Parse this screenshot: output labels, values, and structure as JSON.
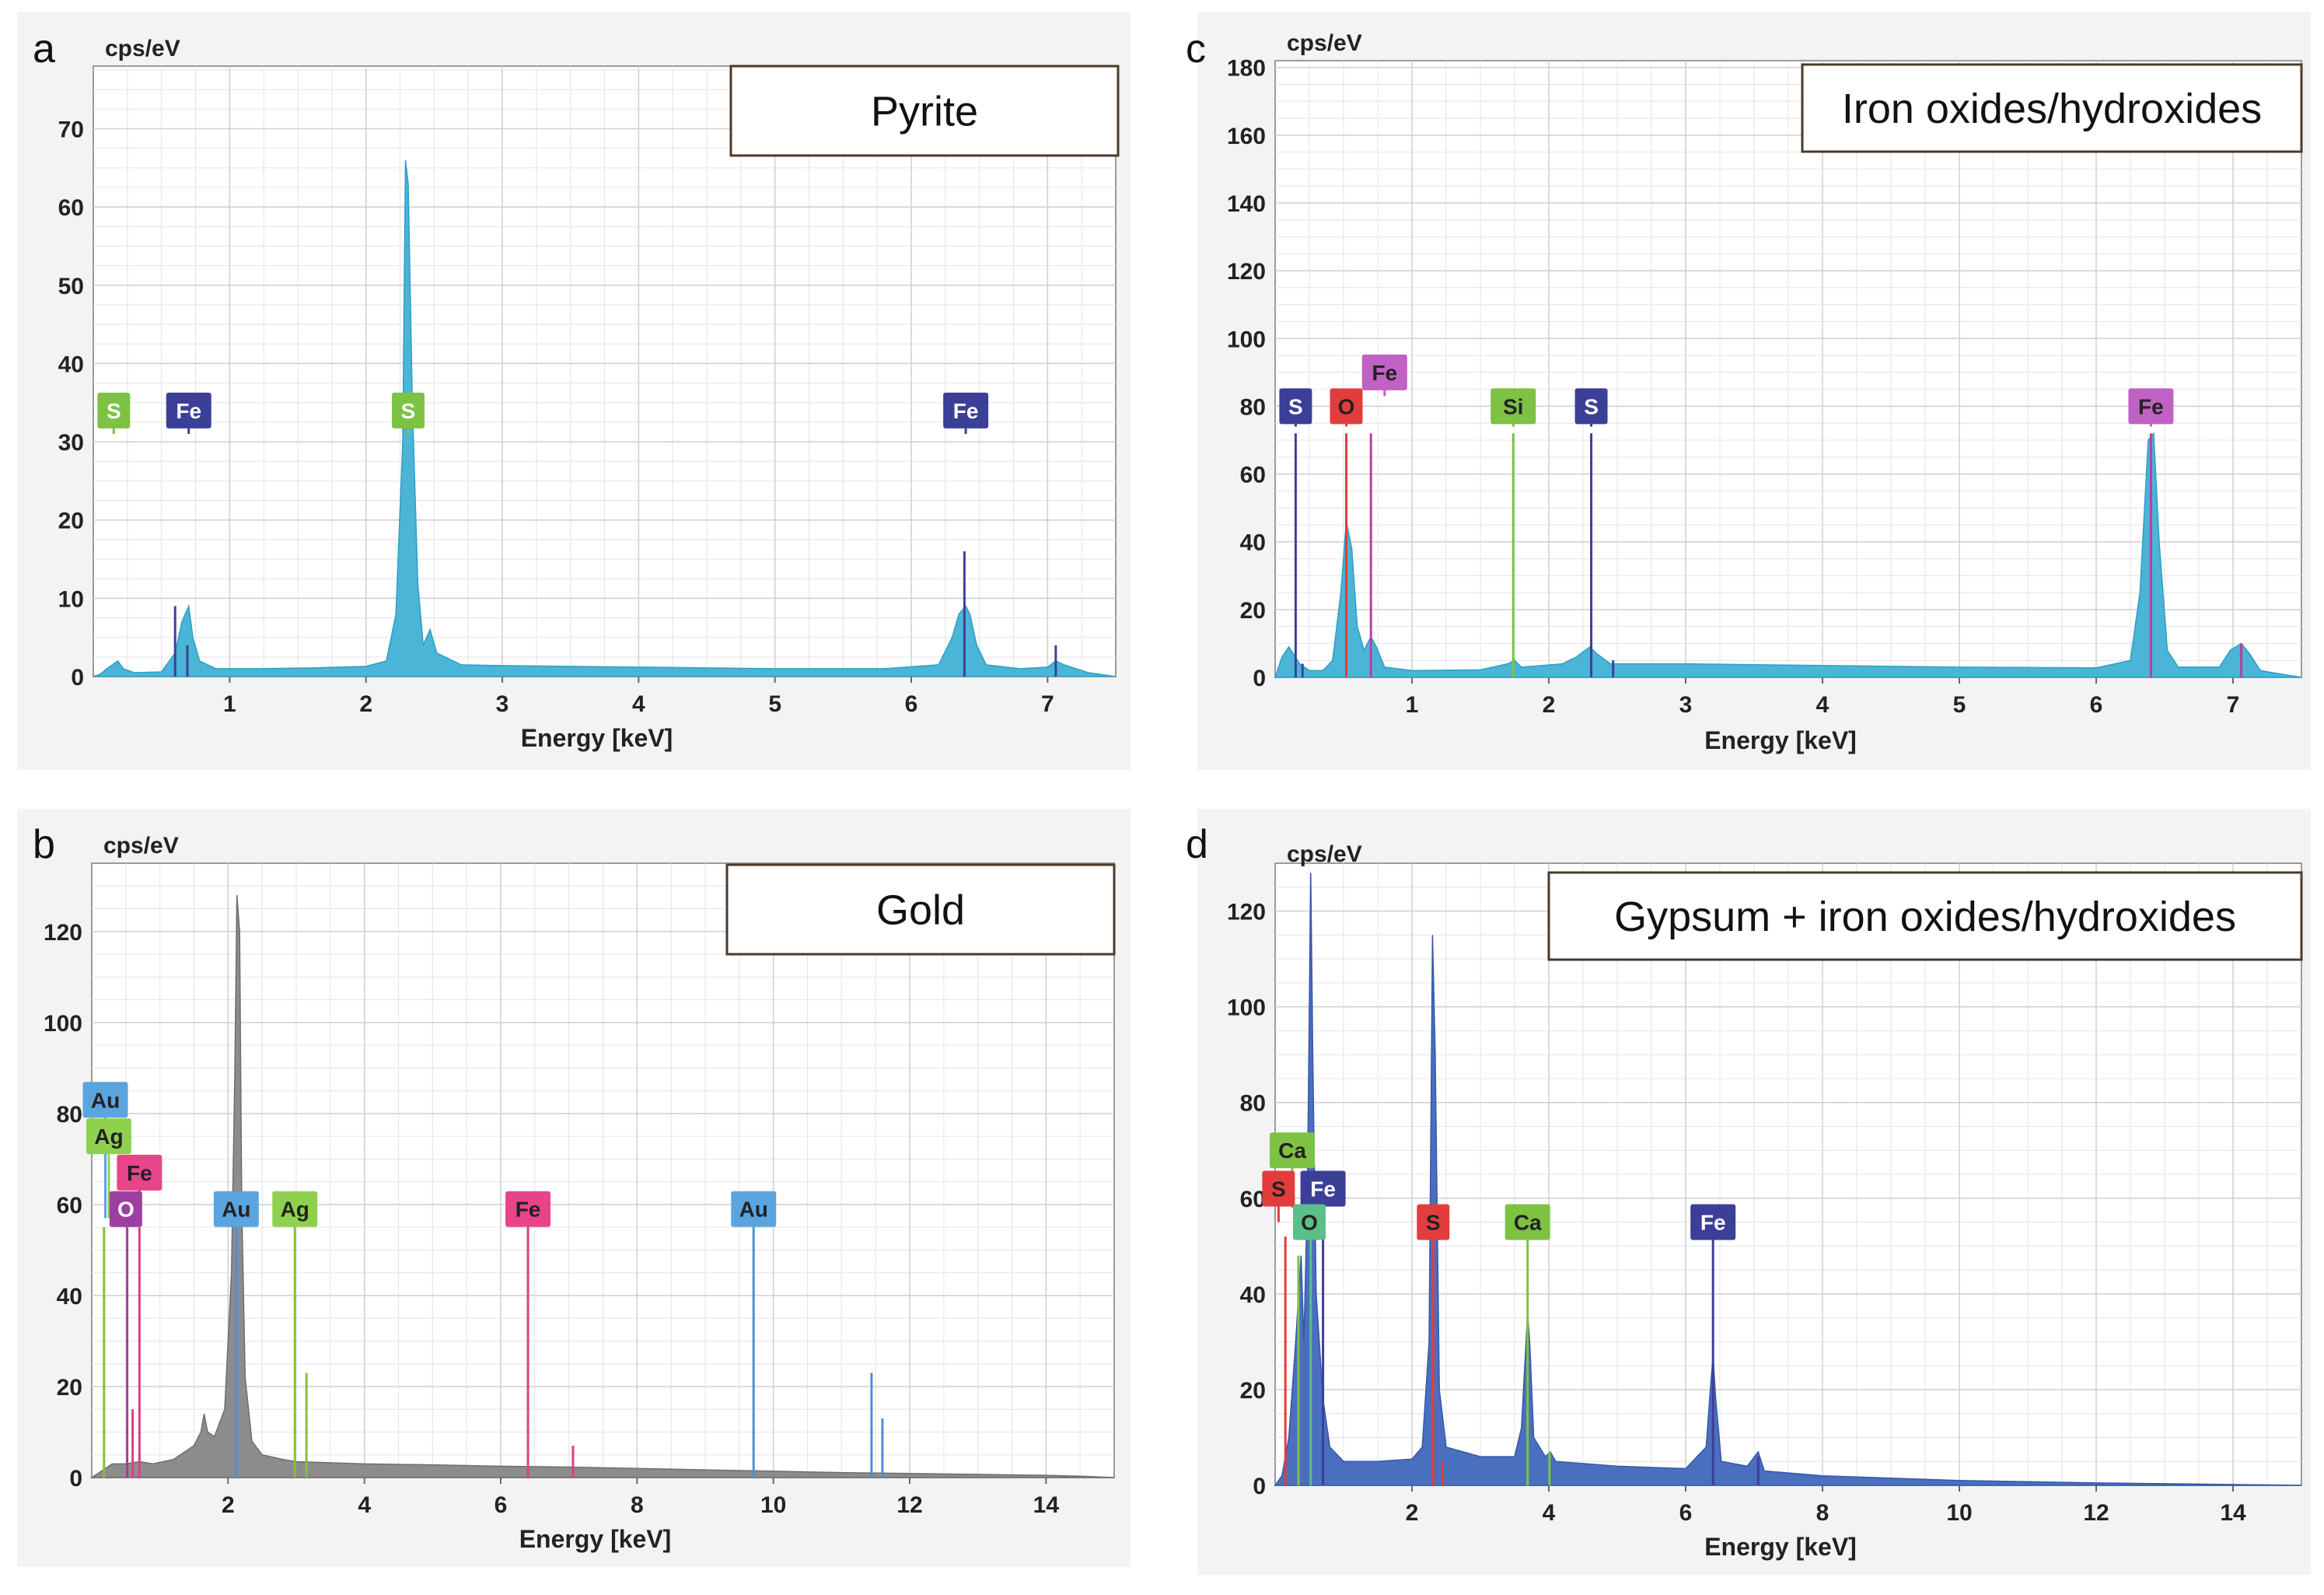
{
  "figure": {
    "letters": [
      "a",
      "b",
      "c",
      "d"
    ]
  },
  "chart_data": [
    {
      "panel": "a",
      "type": "line",
      "title": "Pyrite",
      "ylabel": "cps/eV",
      "xlabel": "Energy [keV]",
      "xlim": [
        0,
        7.5
      ],
      "ylim": [
        0,
        78
      ],
      "xticks": [
        1,
        2,
        3,
        4,
        5,
        6,
        7
      ],
      "yticks": [
        0,
        10,
        20,
        30,
        40,
        50,
        60,
        70
      ],
      "fill_color": "#4ab5d6",
      "stroke_color": "#2f9ec4",
      "spectrum": [
        [
          0,
          0
        ],
        [
          0.05,
          0.3
        ],
        [
          0.1,
          1
        ],
        [
          0.18,
          2
        ],
        [
          0.22,
          1
        ],
        [
          0.3,
          0.5
        ],
        [
          0.5,
          0.6
        ],
        [
          0.6,
          3
        ],
        [
          0.65,
          7
        ],
        [
          0.7,
          9
        ],
        [
          0.73,
          5
        ],
        [
          0.78,
          2
        ],
        [
          0.9,
          1
        ],
        [
          1.2,
          1
        ],
        [
          1.6,
          1.1
        ],
        [
          2,
          1.3
        ],
        [
          2.15,
          2
        ],
        [
          2.22,
          8
        ],
        [
          2.27,
          30
        ],
        [
          2.29,
          66
        ],
        [
          2.31,
          63
        ],
        [
          2.34,
          35
        ],
        [
          2.38,
          12
        ],
        [
          2.42,
          4
        ],
        [
          2.47,
          6
        ],
        [
          2.52,
          3
        ],
        [
          2.7,
          1.5
        ],
        [
          3,
          1.4
        ],
        [
          4,
          1.2
        ],
        [
          5,
          1
        ],
        [
          5.8,
          1
        ],
        [
          6.2,
          1.5
        ],
        [
          6.3,
          5
        ],
        [
          6.35,
          8
        ],
        [
          6.4,
          9
        ],
        [
          6.43,
          8
        ],
        [
          6.48,
          4
        ],
        [
          6.55,
          1.5
        ],
        [
          6.8,
          1
        ],
        [
          7,
          1.2
        ],
        [
          7.06,
          2
        ],
        [
          7.12,
          1.5
        ],
        [
          7.3,
          0.5
        ],
        [
          7.5,
          0
        ]
      ],
      "lines": [
        {
          "x": 0.6,
          "h": 9,
          "color": "#3f3f9a"
        },
        {
          "x": 0.69,
          "h": 4,
          "color": "#3f3f9a"
        },
        {
          "x": 6.39,
          "h": 16,
          "color": "#3f3f9a"
        },
        {
          "x": 7.06,
          "h": 4,
          "color": "#3f3f9a"
        }
      ],
      "labels": [
        {
          "text": "S",
          "x": 0.15,
          "y": 34,
          "top": 31,
          "bg": "#7dc242",
          "fg": "#ffffff"
        },
        {
          "text": "Fe",
          "x": 0.7,
          "y": 34,
          "top": 31,
          "bg": "#3c3f97",
          "fg": "#ffffff"
        },
        {
          "text": "S",
          "x": 2.31,
          "y": 34,
          "top": 31,
          "bg": "#7dc242",
          "fg": "#ffffff"
        },
        {
          "text": "Fe",
          "x": 6.4,
          "y": 34,
          "top": 31,
          "bg": "#3c3f97",
          "fg": "#ffffff"
        }
      ]
    },
    {
      "panel": "b",
      "type": "line",
      "title": "Gold",
      "ylabel": "cps/eV",
      "xlabel": "Energy [keV]",
      "xlim": [
        0,
        15
      ],
      "ylim": [
        0,
        135
      ],
      "xticks": [
        2,
        4,
        6,
        8,
        10,
        12,
        14
      ],
      "yticks": [
        0,
        20,
        40,
        60,
        80,
        100,
        120
      ],
      "fill_color": "#8c8c8c",
      "stroke_color": "#6e6e6e",
      "spectrum": [
        [
          0,
          0
        ],
        [
          0.1,
          1
        ],
        [
          0.2,
          2
        ],
        [
          0.3,
          3
        ],
        [
          0.5,
          3
        ],
        [
          0.7,
          3.5
        ],
        [
          0.9,
          3
        ],
        [
          1.2,
          4
        ],
        [
          1.5,
          7
        ],
        [
          1.6,
          10
        ],
        [
          1.65,
          14
        ],
        [
          1.7,
          10
        ],
        [
          1.8,
          9
        ],
        [
          1.95,
          15
        ],
        [
          2.05,
          45
        ],
        [
          2.1,
          90
        ],
        [
          2.13,
          128
        ],
        [
          2.17,
          120
        ],
        [
          2.2,
          60
        ],
        [
          2.25,
          22
        ],
        [
          2.35,
          8
        ],
        [
          2.5,
          5
        ],
        [
          2.8,
          4
        ],
        [
          3,
          3.5
        ],
        [
          4,
          3
        ],
        [
          5,
          2.8
        ],
        [
          6,
          2.5
        ],
        [
          7,
          2.3
        ],
        [
          8,
          2
        ],
        [
          9,
          1.7
        ],
        [
          10,
          1.4
        ],
        [
          11,
          1.1
        ],
        [
          12,
          0.9
        ],
        [
          13,
          0.7
        ],
        [
          14,
          0.5
        ],
        [
          14.5,
          0.3
        ],
        [
          15,
          0
        ]
      ],
      "lines": [
        {
          "x": 0.18,
          "h": 55,
          "color": "#7dc242"
        },
        {
          "x": 0.52,
          "h": 55,
          "color": "#9c3fa0"
        },
        {
          "x": 0.7,
          "h": 55,
          "color": "#e23d83"
        },
        {
          "x": 2.12,
          "h": 55,
          "color": "#4b8fd6"
        },
        {
          "x": 2.98,
          "h": 55,
          "color": "#7dc242"
        },
        {
          "x": 3.15,
          "h": 23,
          "color": "#7dc242"
        },
        {
          "x": 6.4,
          "h": 55,
          "color": "#e23d83"
        },
        {
          "x": 7.06,
          "h": 7,
          "color": "#e23d83"
        },
        {
          "x": 9.71,
          "h": 55,
          "color": "#4b8fd6"
        },
        {
          "x": 11.44,
          "h": 23,
          "color": "#4b8fd6"
        },
        {
          "x": 11.6,
          "h": 13,
          "color": "#4b8fd6"
        },
        {
          "x": 0.6,
          "h": 15,
          "color": "#e23d83"
        }
      ],
      "labels": [
        {
          "text": "Au",
          "x": 0.2,
          "y": 83,
          "top": 57,
          "bg": "#5aa4e0",
          "fg": "#222222"
        },
        {
          "text": "Ag",
          "x": 0.25,
          "y": 75,
          "top": 57,
          "bg": "#8fd14f",
          "fg": "#222222"
        },
        {
          "text": "Fe",
          "x": 0.7,
          "y": 67,
          "top": 57,
          "bg": "#e8448c",
          "fg": "#222222"
        },
        {
          "text": "O",
          "x": 0.5,
          "y": 59,
          "top": 55,
          "bg": "#9c3fa0",
          "fg": "#ffffff"
        },
        {
          "text": "Au",
          "x": 2.12,
          "y": 59,
          "top": 55,
          "bg": "#5aa4e0",
          "fg": "#222222"
        },
        {
          "text": "Ag",
          "x": 2.98,
          "y": 59,
          "top": 55,
          "bg": "#8fd14f",
          "fg": "#222222"
        },
        {
          "text": "Fe",
          "x": 6.4,
          "y": 59,
          "top": 55,
          "bg": "#e8448c",
          "fg": "#222222"
        },
        {
          "text": "Au",
          "x": 9.71,
          "y": 59,
          "top": 55,
          "bg": "#5aa4e0",
          "fg": "#222222"
        }
      ]
    },
    {
      "panel": "c",
      "type": "line",
      "title": "Iron oxides/hydroxides",
      "ylabel": "cps/eV",
      "xlabel": "Energy [keV]",
      "xlim": [
        0,
        7.5
      ],
      "ylim": [
        0,
        182
      ],
      "xticks": [
        1,
        2,
        3,
        4,
        5,
        6,
        7
      ],
      "yticks": [
        0,
        20,
        40,
        60,
        80,
        100,
        120,
        140,
        160,
        180
      ],
      "fill_color": "#4ab5d6",
      "stroke_color": "#2f9ec4",
      "spectrum": [
        [
          0,
          0
        ],
        [
          0.05,
          6
        ],
        [
          0.1,
          9
        ],
        [
          0.18,
          4
        ],
        [
          0.25,
          2
        ],
        [
          0.35,
          2
        ],
        [
          0.42,
          5
        ],
        [
          0.48,
          25
        ],
        [
          0.52,
          46
        ],
        [
          0.56,
          38
        ],
        [
          0.6,
          15
        ],
        [
          0.65,
          8
        ],
        [
          0.7,
          12
        ],
        [
          0.74,
          9
        ],
        [
          0.8,
          3
        ],
        [
          1,
          2
        ],
        [
          1.5,
          2.2
        ],
        [
          1.7,
          4
        ],
        [
          1.75,
          5
        ],
        [
          1.8,
          3
        ],
        [
          2.1,
          4
        ],
        [
          2.2,
          6
        ],
        [
          2.3,
          9
        ],
        [
          2.35,
          7
        ],
        [
          2.45,
          4
        ],
        [
          3,
          4
        ],
        [
          4,
          3.5
        ],
        [
          5,
          3
        ],
        [
          6,
          2.8
        ],
        [
          6.25,
          5
        ],
        [
          6.32,
          25
        ],
        [
          6.38,
          70
        ],
        [
          6.42,
          72
        ],
        [
          6.46,
          40
        ],
        [
          6.52,
          8
        ],
        [
          6.6,
          3
        ],
        [
          6.9,
          3
        ],
        [
          6.98,
          8
        ],
        [
          7.06,
          10
        ],
        [
          7.12,
          7
        ],
        [
          7.2,
          2
        ],
        [
          7.5,
          0
        ]
      ],
      "lines": [
        {
          "x": 0.15,
          "h": 72,
          "color": "#3c3f97"
        },
        {
          "x": 0.52,
          "h": 72,
          "color": "#e23d3d"
        },
        {
          "x": 0.7,
          "h": 72,
          "color": "#b93fa0"
        },
        {
          "x": 1.74,
          "h": 72,
          "color": "#7dc242"
        },
        {
          "x": 2.31,
          "h": 72,
          "color": "#3c3f97"
        },
        {
          "x": 6.4,
          "h": 72,
          "color": "#b93fa0"
        },
        {
          "x": 7.06,
          "h": 10,
          "color": "#b93fa0"
        },
        {
          "x": 0.2,
          "h": 4,
          "color": "#3c3f97"
        },
        {
          "x": 2.47,
          "h": 5,
          "color": "#3c3f97"
        }
      ],
      "labels": [
        {
          "text": "Fe",
          "x": 0.8,
          "y": 90,
          "top": 83,
          "bg": "#c061c4",
          "fg": "#222222"
        },
        {
          "text": "S",
          "x": 0.15,
          "y": 80,
          "top": 74,
          "bg": "#3c3f97",
          "fg": "#ffffff"
        },
        {
          "text": "O",
          "x": 0.52,
          "y": 80,
          "top": 74,
          "bg": "#e23d3d",
          "fg": "#222222"
        },
        {
          "text": "Si",
          "x": 1.74,
          "y": 80,
          "top": 74,
          "bg": "#7dc242",
          "fg": "#222222"
        },
        {
          "text": "S",
          "x": 2.31,
          "y": 80,
          "top": 74,
          "bg": "#3c3f97",
          "fg": "#ffffff"
        },
        {
          "text": "Fe",
          "x": 6.4,
          "y": 80,
          "top": 74,
          "bg": "#c061c4",
          "fg": "#222222"
        }
      ]
    },
    {
      "panel": "d",
      "type": "line",
      "title": "Gypsum + iron oxides/hydroxides",
      "ylabel": "cps/eV",
      "xlabel": "Energy [keV]",
      "xlim": [
        0,
        15
      ],
      "ylim": [
        0,
        130
      ],
      "xticks": [
        2,
        4,
        6,
        8,
        10,
        12,
        14
      ],
      "yticks": [
        0,
        20,
        40,
        60,
        80,
        100,
        120
      ],
      "fill_color": "#4a6fbf",
      "stroke_color": "#3558a8",
      "spectrum": [
        [
          0,
          0
        ],
        [
          0.1,
          2
        ],
        [
          0.2,
          10
        ],
        [
          0.3,
          30
        ],
        [
          0.38,
          48
        ],
        [
          0.42,
          30
        ],
        [
          0.47,
          60
        ],
        [
          0.5,
          100
        ],
        [
          0.52,
          128
        ],
        [
          0.55,
          90
        ],
        [
          0.6,
          40
        ],
        [
          0.7,
          18
        ],
        [
          0.8,
          8
        ],
        [
          1,
          5
        ],
        [
          1.5,
          5
        ],
        [
          2,
          5.5
        ],
        [
          2.15,
          8
        ],
        [
          2.25,
          30
        ],
        [
          2.3,
          115
        ],
        [
          2.34,
          90
        ],
        [
          2.4,
          20
        ],
        [
          2.5,
          8
        ],
        [
          3,
          6
        ],
        [
          3.5,
          6
        ],
        [
          3.6,
          12
        ],
        [
          3.69,
          36
        ],
        [
          3.72,
          30
        ],
        [
          3.78,
          10
        ],
        [
          3.95,
          6
        ],
        [
          4.02,
          7
        ],
        [
          4.1,
          5
        ],
        [
          5,
          4
        ],
        [
          6,
          3.5
        ],
        [
          6.3,
          8
        ],
        [
          6.36,
          20
        ],
        [
          6.4,
          27
        ],
        [
          6.44,
          18
        ],
        [
          6.52,
          5
        ],
        [
          6.9,
          4
        ],
        [
          7.06,
          7
        ],
        [
          7.15,
          3
        ],
        [
          8,
          2
        ],
        [
          10,
          1
        ],
        [
          12,
          0.5
        ],
        [
          15,
          0
        ]
      ],
      "lines": [
        {
          "x": 0.15,
          "h": 52,
          "color": "#e23d3d"
        },
        {
          "x": 0.34,
          "h": 48,
          "color": "#7dc242"
        },
        {
          "x": 0.52,
          "h": 58,
          "color": "#5bbf8a"
        },
        {
          "x": 0.7,
          "h": 58,
          "color": "#3c3f97"
        },
        {
          "x": 2.31,
          "h": 52,
          "color": "#e23d3d"
        },
        {
          "x": 2.45,
          "h": 5,
          "color": "#e23d3d"
        },
        {
          "x": 3.69,
          "h": 52,
          "color": "#7dc242"
        },
        {
          "x": 4.01,
          "h": 7,
          "color": "#7dc242"
        },
        {
          "x": 6.4,
          "h": 52,
          "color": "#3c3f97"
        },
        {
          "x": 7.06,
          "h": 6,
          "color": "#3c3f97"
        }
      ],
      "labels": [
        {
          "text": "Ca",
          "x": 0.25,
          "y": 70,
          "top": 58,
          "bg": "#7dc242",
          "fg": "#222222"
        },
        {
          "text": "S",
          "x": 0.05,
          "y": 62,
          "top": 55,
          "bg": "#e23d3d",
          "fg": "#222222"
        },
        {
          "text": "Fe",
          "x": 0.7,
          "y": 62,
          "top": 58,
          "bg": "#3c3f97",
          "fg": "#ffffff"
        },
        {
          "text": "O",
          "x": 0.5,
          "y": 55,
          "top": 52,
          "bg": "#5bbf8a",
          "fg": "#222222"
        },
        {
          "text": "S",
          "x": 2.31,
          "y": 55,
          "top": 52,
          "bg": "#e23d3d",
          "fg": "#222222"
        },
        {
          "text": "Ca",
          "x": 3.69,
          "y": 55,
          "top": 52,
          "bg": "#7dc242",
          "fg": "#222222"
        },
        {
          "text": "Fe",
          "x": 6.4,
          "y": 55,
          "top": 52,
          "bg": "#3c3f97",
          "fg": "#ffffff"
        }
      ]
    }
  ]
}
